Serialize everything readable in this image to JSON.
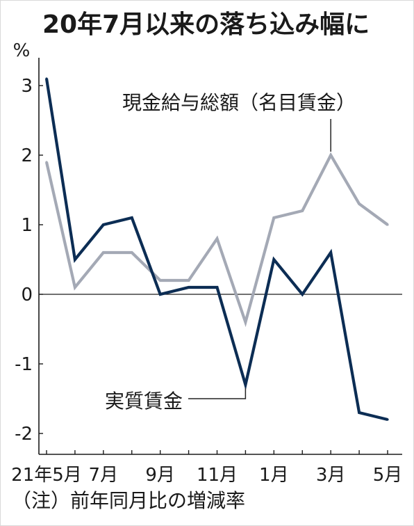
{
  "title": "20年7月以来の落ち込み幅に",
  "note": "（注）前年同月比の増減率",
  "colors": {
    "axis": "#1a1a1a",
    "leader": "#222222"
  },
  "chart_data": {
    "type": "line",
    "title": "20年7月以来の落ち込み幅に",
    "xlabel": "",
    "ylabel": "%",
    "categories": [
      "21年5月",
      "",
      "7月",
      "",
      "9月",
      "",
      "11月",
      "",
      "1月",
      "",
      "3月",
      "",
      "5月"
    ],
    "yticks": [
      3,
      2,
      1,
      0,
      -1,
      -2
    ],
    "ylim": [
      -2.3,
      3.4
    ],
    "grid": false,
    "zero_line": true,
    "legend": "inline labels",
    "series": [
      {
        "name": "現金給与総額（名目賃金）",
        "color": "#a4a9b5",
        "values": [
          1.9,
          0.1,
          0.6,
          0.6,
          0.2,
          0.2,
          0.8,
          -0.4,
          1.1,
          1.2,
          2.0,
          1.3,
          1.0
        ]
      },
      {
        "name": "実質賃金",
        "color": "#0c2d54",
        "values": [
          3.1,
          0.5,
          1.0,
          1.1,
          0.0,
          0.1,
          0.1,
          -1.3,
          0.5,
          0.0,
          0.6,
          -1.7,
          -1.8
        ]
      }
    ]
  }
}
